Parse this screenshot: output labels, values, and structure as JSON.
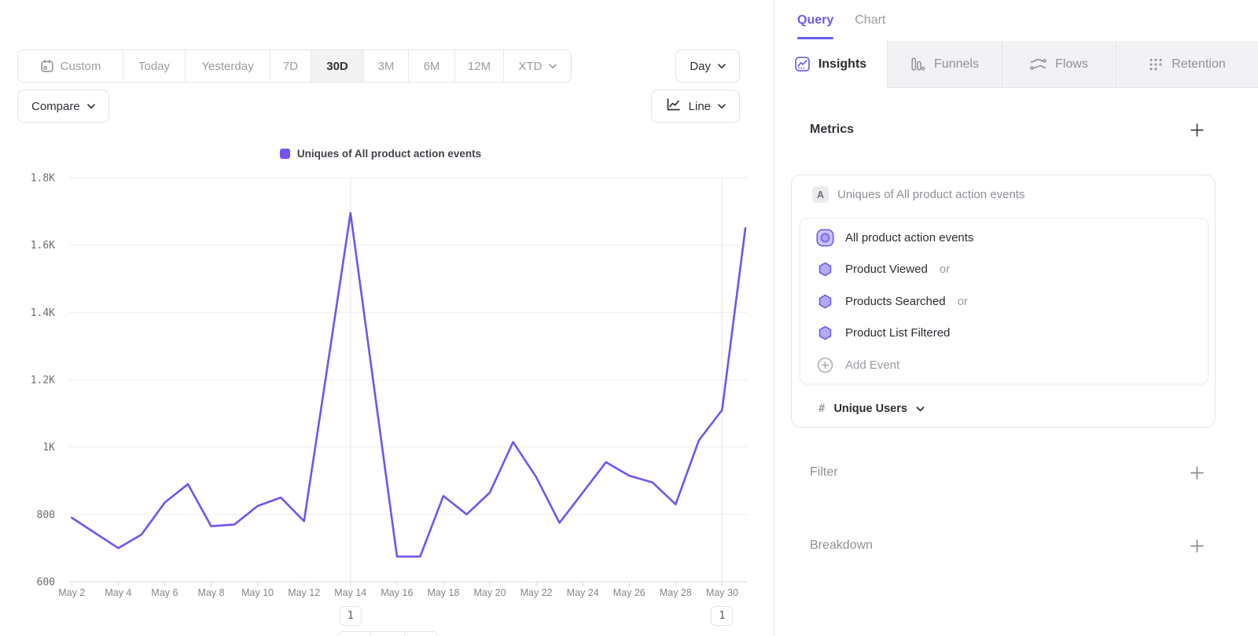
{
  "colors": {
    "accent": "#6a5be8",
    "series": "#7453ec"
  },
  "toolbar": {
    "date_ranges": [
      {
        "label": "Custom",
        "icon": "calendar-icon"
      },
      {
        "label": "Today"
      },
      {
        "label": "Yesterday"
      },
      {
        "label": "7D"
      },
      {
        "label": "30D",
        "active": true
      },
      {
        "label": "3M"
      },
      {
        "label": "6M"
      },
      {
        "label": "12M"
      },
      {
        "label": "XTD",
        "chevron": true
      }
    ],
    "granularity": {
      "label": "Day"
    },
    "compare": {
      "label": "Compare"
    },
    "chart_type": {
      "label": "Line",
      "icon": "line-chart-icon"
    }
  },
  "chart_data": {
    "type": "line",
    "title": "Uniques of All product action events",
    "legend_position": "top-center",
    "grid": true,
    "x": [
      "May 2",
      "May 3",
      "May 4",
      "May 5",
      "May 6",
      "May 7",
      "May 8",
      "May 9",
      "May 10",
      "May 11",
      "May 12",
      "May 13",
      "May 14",
      "May 15",
      "May 16",
      "May 17",
      "May 18",
      "May 19",
      "May 20",
      "May 21",
      "May 22",
      "May 23",
      "May 24",
      "May 25",
      "May 26",
      "May 27",
      "May 28",
      "May 29",
      "May 30",
      "May 31"
    ],
    "values": [
      790,
      745,
      700,
      740,
      835,
      890,
      765,
      770,
      825,
      850,
      780,
      1235,
      1695,
      1185,
      675,
      675,
      855,
      800,
      865,
      1015,
      910,
      775,
      865,
      955,
      915,
      895,
      830,
      1020,
      1110,
      1650
    ],
    "ylim": [
      600,
      1800
    ],
    "y_ticks": [
      600,
      800,
      1000,
      1200,
      1400,
      1600,
      1800
    ],
    "y_tick_labels": [
      "600",
      "800",
      "1K",
      "1.2K",
      "1.4K",
      "1.6K",
      "1.8K"
    ],
    "x_tick_labels": [
      "May 2",
      "May 4",
      "May 6",
      "May 8",
      "May 10",
      "May 12",
      "May 14",
      "May 16",
      "May 18",
      "May 20",
      "May 22",
      "May 24",
      "May 26",
      "May 28",
      "May 30"
    ],
    "series_color": "#7453ec",
    "annotations": [
      {
        "x": "May 14",
        "label": "1"
      },
      {
        "x": "May 30",
        "label": "1"
      }
    ]
  },
  "panel": {
    "header_tabs": [
      {
        "label": "Query",
        "active": true
      },
      {
        "label": "Chart",
        "active": false
      }
    ],
    "report_tabs": [
      {
        "label": "Insights",
        "icon": "insights-icon",
        "active": true
      },
      {
        "label": "Funnels",
        "icon": "funnels-icon",
        "active": false
      },
      {
        "label": "Flows",
        "icon": "flows-icon",
        "active": false
      },
      {
        "label": "Retention",
        "icon": "retention-icon",
        "active": false
      }
    ],
    "metrics": {
      "heading": "Metrics",
      "letter": "A",
      "summary": "Uniques of All product action events",
      "events": [
        {
          "name": "All product action events",
          "suffix": "",
          "icon": "merged-event-icon"
        },
        {
          "name": "Product Viewed",
          "suffix": "or",
          "icon": "event-hexagon-icon"
        },
        {
          "name": "Products Searched",
          "suffix": "or",
          "icon": "event-hexagon-icon"
        },
        {
          "name": "Product List Filtered",
          "suffix": "",
          "icon": "event-hexagon-icon"
        }
      ],
      "add_event": "Add Event",
      "measurement": {
        "prefix": "#",
        "label": "Unique Users"
      }
    },
    "sections": [
      {
        "label": "Filter"
      },
      {
        "label": "Breakdown"
      }
    ]
  }
}
